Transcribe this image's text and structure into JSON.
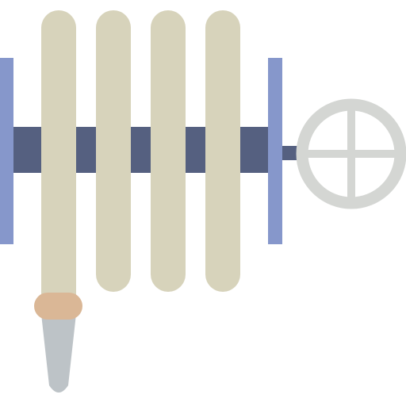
{
  "illustration": {
    "icon": "hose-reel-icon",
    "colors": {
      "background": "#ffffff",
      "axle": "#556080",
      "side_plates": "#8697cb",
      "hose": "#d7d3bb",
      "coupling": "#dab796",
      "nozzle": "#bdc3c7",
      "crank_wheel": "#d4d6d3"
    },
    "hose_coil_count": 4
  }
}
